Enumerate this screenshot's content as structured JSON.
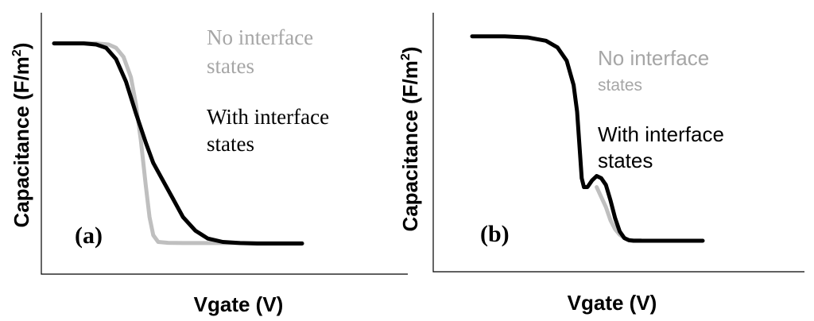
{
  "chart_data": [
    {
      "type": "line",
      "panel_label": "(a)",
      "xlabel": "Vgate (V)",
      "ylabel": "Capacitance (F/m",
      "ylabel_sup": "2",
      "ylabel_end": ")",
      "xlim": [
        0,
        100
      ],
      "ylim": [
        0,
        100
      ],
      "grid": false,
      "axis_ticks": false,
      "legend_placement": "top-right",
      "series": [
        {
          "name": "No interface states",
          "color": "#bfbfbf",
          "x": [
            0,
            17,
            22,
            25,
            28,
            31,
            33,
            35,
            37,
            38.5,
            40,
            42,
            46,
            52,
            60,
            100
          ],
          "y": [
            91,
            91,
            90.5,
            89,
            85,
            76,
            64,
            48,
            28,
            14,
            6,
            3,
            2.6,
            2.5,
            2.5,
            2.5
          ]
        },
        {
          "name": "With interface states",
          "color": "#000000",
          "x": [
            0,
            12,
            17,
            21,
            25,
            29,
            33,
            37,
            40,
            44,
            48,
            52,
            57,
            62,
            68,
            75,
            82,
            100
          ],
          "y": [
            91,
            91,
            90.5,
            89,
            84,
            74,
            60,
            47,
            38,
            30,
            22,
            14,
            8,
            4.5,
            3,
            2.5,
            2.3,
            2.3
          ]
        }
      ]
    },
    {
      "type": "line",
      "panel_label": "(b)",
      "xlabel": "Vgate (V)",
      "ylabel": "Capacitance (F/m",
      "ylabel_sup": "2",
      "ylabel_end": ")",
      "xlim": [
        0,
        100
      ],
      "ylim": [
        0,
        100
      ],
      "grid": false,
      "axis_ticks": false,
      "legend_placement": "top-right",
      "series": [
        {
          "name": "No interface states",
          "color": "#bfbfbf",
          "x": [
            54,
            58,
            60,
            62,
            64,
            66,
            68,
            70,
            73
          ],
          "y": [
            26,
            17,
            11,
            7,
            4.5,
            3,
            2.2,
            2,
            2
          ]
        },
        {
          "name": "With interface states",
          "color": "#000000",
          "x": [
            0,
            14,
            24,
            32,
            37,
            41,
            44,
            45.5,
            46.5,
            47.5,
            48.5,
            50,
            52,
            54,
            56,
            58,
            60,
            62,
            64,
            66,
            68,
            70,
            72,
            100
          ],
          "y": [
            94,
            94,
            93.5,
            92,
            89,
            83,
            72,
            60,
            45,
            30,
            26,
            26,
            29,
            31,
            30,
            27,
            20,
            12,
            6,
            3,
            2,
            1.8,
            1.8,
            1.8
          ]
        }
      ]
    }
  ]
}
